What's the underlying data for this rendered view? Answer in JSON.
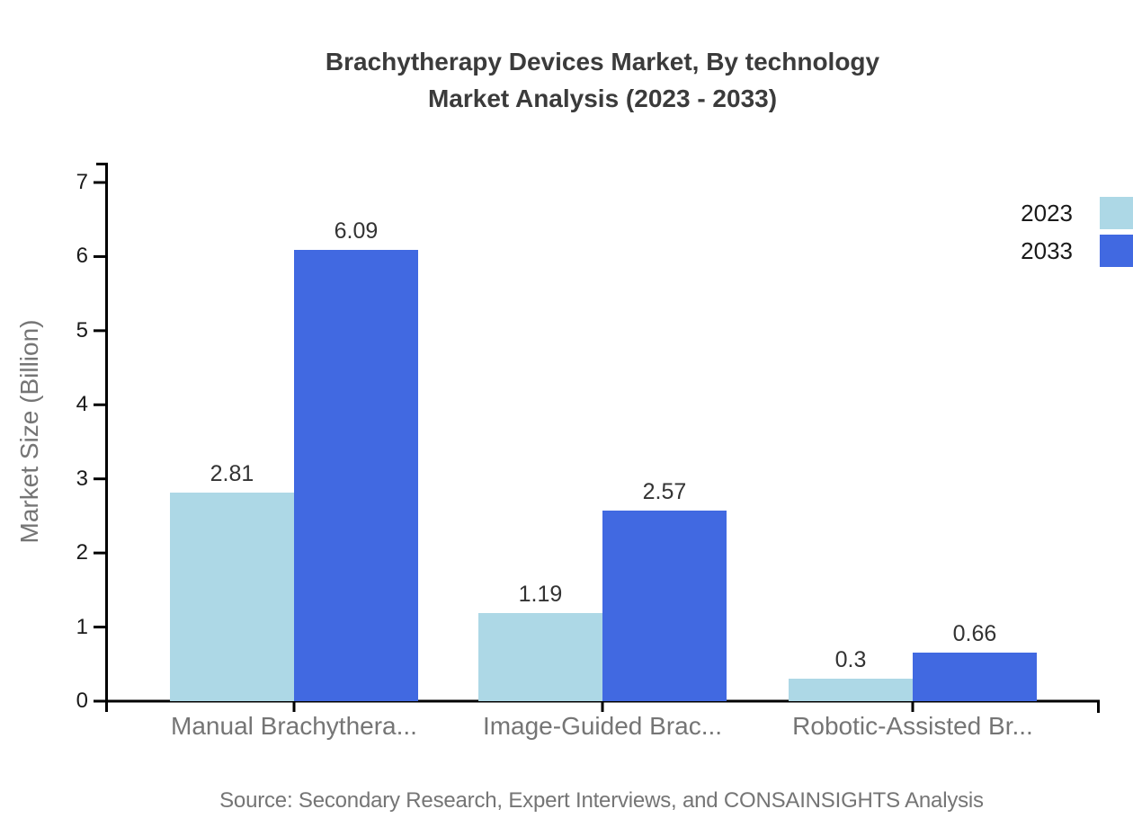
{
  "title": {
    "line1": "Brachytherapy Devices Market, By technology",
    "line2": "Market Analysis (2023 - 2033)"
  },
  "source_note": "Source: Secondary Research, Expert Interviews, and CONSAINSIGHTS Analysis",
  "chart_data": {
    "type": "bar",
    "title": "Brachytherapy Devices Market, By technology Market Analysis (2023 - 2033)",
    "categories": [
      "Manual Brachythera...",
      "Image-Guided Brac...",
      "Robotic-Assisted Br..."
    ],
    "series": [
      {
        "name": "2023",
        "color": "#ADD8E6",
        "values": [
          2.81,
          1.19,
          0.3
        ]
      },
      {
        "name": "2033",
        "color": "#4169E1",
        "values": [
          6.09,
          2.57,
          0.66
        ]
      }
    ],
    "xlabel": "",
    "ylabel": "Market Size (Billion)",
    "yticks": [
      0,
      1,
      2,
      3,
      4,
      5,
      6,
      7
    ],
    "ylim": [
      0,
      7
    ],
    "grid": false,
    "value_labels": true,
    "legend_position": "top-right",
    "axis_color": "#000000",
    "text_color_dark": "#333333",
    "text_color_gray": "#757575"
  }
}
